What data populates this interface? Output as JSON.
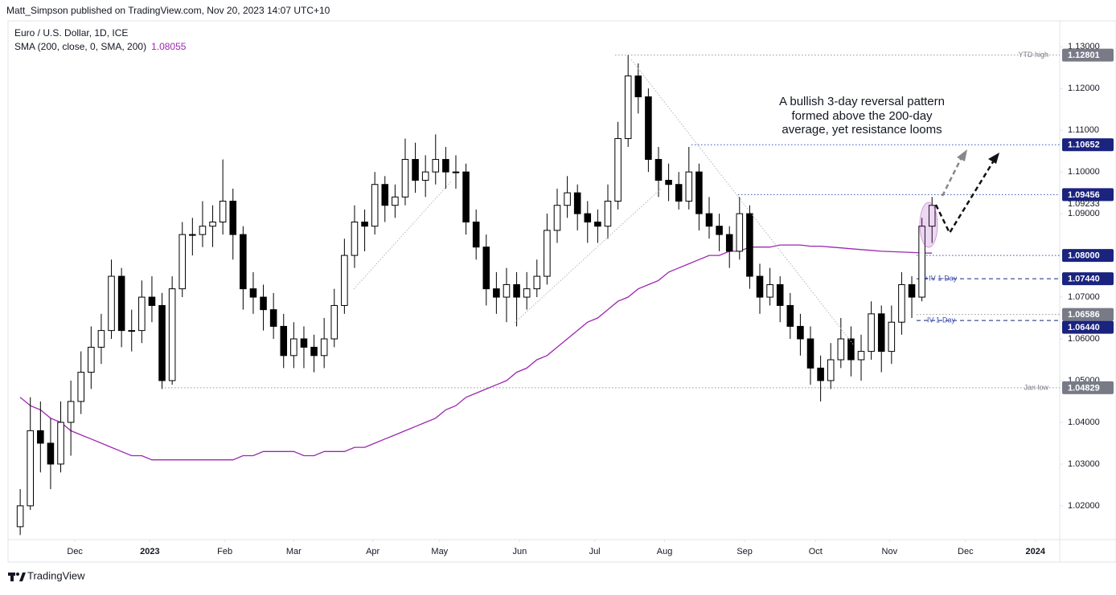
{
  "header": "Matt_Simpson published on TradingView.com, Nov 20, 2023 14:07 UTC+10",
  "footer": "TradingView",
  "chart_data": {
    "type": "candlestick",
    "title": "Euro / U.S. Dollar, 1D, ICE",
    "annotation": [
      "A bullish 3-day reversal pattern",
      "formed above the 200-day",
      "average, yet resistance looms"
    ],
    "up_color": "#ffffff",
    "down_color": "#000000",
    "candles": [
      [
        1.015,
        1.024,
        1.013,
        1.02
      ],
      [
        1.02,
        1.046,
        1.019,
        1.038
      ],
      [
        1.038,
        1.045,
        1.028,
        1.035
      ],
      [
        1.035,
        1.041,
        1.024,
        1.03
      ],
      [
        1.03,
        1.045,
        1.028,
        1.04
      ],
      [
        1.04,
        1.05,
        1.032,
        1.045
      ],
      [
        1.045,
        1.057,
        1.042,
        1.052
      ],
      [
        1.052,
        1.063,
        1.048,
        1.058
      ],
      [
        1.058,
        1.066,
        1.054,
        1.062
      ],
      [
        1.062,
        1.079,
        1.06,
        1.075
      ],
      [
        1.075,
        1.077,
        1.058,
        1.062
      ],
      [
        1.062,
        1.067,
        1.057,
        1.062
      ],
      [
        1.062,
        1.074,
        1.059,
        1.07
      ],
      [
        1.07,
        1.075,
        1.064,
        1.068
      ],
      [
        1.068,
        1.071,
        1.048,
        1.05
      ],
      [
        1.05,
        1.075,
        1.049,
        1.072
      ],
      [
        1.072,
        1.088,
        1.07,
        1.085
      ],
      [
        1.085,
        1.089,
        1.08,
        1.085
      ],
      [
        1.085,
        1.093,
        1.082,
        1.087
      ],
      [
        1.087,
        1.092,
        1.082,
        1.088
      ],
      [
        1.088,
        1.103,
        1.085,
        1.093
      ],
      [
        1.093,
        1.096,
        1.079,
        1.085
      ],
      [
        1.085,
        1.087,
        1.067,
        1.072
      ],
      [
        1.072,
        1.076,
        1.066,
        1.07
      ],
      [
        1.07,
        1.073,
        1.062,
        1.067
      ],
      [
        1.067,
        1.071,
        1.06,
        1.063
      ],
      [
        1.063,
        1.066,
        1.053,
        1.056
      ],
      [
        1.056,
        1.064,
        1.053,
        1.06
      ],
      [
        1.06,
        1.063,
        1.053,
        1.058
      ],
      [
        1.058,
        1.061,
        1.052,
        1.056
      ],
      [
        1.056,
        1.065,
        1.053,
        1.06
      ],
      [
        1.06,
        1.072,
        1.058,
        1.068
      ],
      [
        1.068,
        1.084,
        1.066,
        1.08
      ],
      [
        1.08,
        1.092,
        1.077,
        1.088
      ],
      [
        1.088,
        1.091,
        1.081,
        1.087
      ],
      [
        1.087,
        1.1,
        1.085,
        1.097
      ],
      [
        1.097,
        1.099,
        1.088,
        1.092
      ],
      [
        1.092,
        1.097,
        1.089,
        1.094
      ],
      [
        1.094,
        1.108,
        1.092,
        1.103
      ],
      [
        1.103,
        1.107,
        1.095,
        1.098
      ],
      [
        1.098,
        1.104,
        1.094,
        1.1
      ],
      [
        1.1,
        1.109,
        1.097,
        1.103
      ],
      [
        1.103,
        1.106,
        1.096,
        1.1
      ],
      [
        1.1,
        1.104,
        1.096,
        1.1
      ],
      [
        1.1,
        1.102,
        1.085,
        1.088
      ],
      [
        1.088,
        1.091,
        1.079,
        1.082
      ],
      [
        1.082,
        1.085,
        1.068,
        1.072
      ],
      [
        1.072,
        1.076,
        1.066,
        1.07
      ],
      [
        1.07,
        1.077,
        1.064,
        1.073
      ],
      [
        1.073,
        1.076,
        1.063,
        1.07
      ],
      [
        1.07,
        1.076,
        1.067,
        1.072
      ],
      [
        1.072,
        1.079,
        1.07,
        1.075
      ],
      [
        1.075,
        1.09,
        1.073,
        1.086
      ],
      [
        1.086,
        1.096,
        1.083,
        1.092
      ],
      [
        1.092,
        1.099,
        1.089,
        1.095
      ],
      [
        1.095,
        1.097,
        1.086,
        1.09
      ],
      [
        1.09,
        1.093,
        1.083,
        1.088
      ],
      [
        1.088,
        1.091,
        1.083,
        1.087
      ],
      [
        1.087,
        1.097,
        1.084,
        1.093
      ],
      [
        1.093,
        1.112,
        1.091,
        1.108
      ],
      [
        1.108,
        1.128,
        1.106,
        1.123
      ],
      [
        1.123,
        1.126,
        1.114,
        1.118
      ],
      [
        1.118,
        1.12,
        1.1,
        1.103
      ],
      [
        1.103,
        1.106,
        1.094,
        1.098
      ],
      [
        1.098,
        1.102,
        1.093,
        1.097
      ],
      [
        1.097,
        1.1,
        1.091,
        1.093
      ],
      [
        1.093,
        1.106,
        1.091,
        1.1
      ],
      [
        1.1,
        1.102,
        1.086,
        1.09
      ],
      [
        1.09,
        1.094,
        1.084,
        1.087
      ],
      [
        1.087,
        1.09,
        1.081,
        1.085
      ],
      [
        1.085,
        1.087,
        1.077,
        1.081
      ],
      [
        1.081,
        1.094,
        1.079,
        1.09
      ],
      [
        1.09,
        1.092,
        1.072,
        1.075
      ],
      [
        1.075,
        1.078,
        1.066,
        1.07
      ],
      [
        1.07,
        1.077,
        1.068,
        1.073
      ],
      [
        1.073,
        1.075,
        1.064,
        1.068
      ],
      [
        1.068,
        1.071,
        1.06,
        1.063
      ],
      [
        1.063,
        1.066,
        1.056,
        1.06
      ],
      [
        1.06,
        1.063,
        1.049,
        1.053
      ],
      [
        1.053,
        1.056,
        1.045,
        1.05
      ],
      [
        1.05,
        1.059,
        1.048,
        1.055
      ],
      [
        1.055,
        1.065,
        1.053,
        1.06
      ],
      [
        1.06,
        1.063,
        1.051,
        1.055
      ],
      [
        1.055,
        1.061,
        1.05,
        1.057
      ],
      [
        1.057,
        1.069,
        1.055,
        1.066
      ],
      [
        1.066,
        1.068,
        1.052,
        1.057
      ],
      [
        1.057,
        1.068,
        1.054,
        1.064
      ],
      [
        1.064,
        1.076,
        1.061,
        1.073
      ],
      [
        1.073,
        1.075,
        1.065,
        1.07
      ],
      [
        1.07,
        1.089,
        1.069,
        1.087
      ],
      [
        1.087,
        1.094,
        1.083,
        1.092
      ]
    ],
    "series": [
      {
        "name": "SMA (200, close, 0, SMA, 200)",
        "color": "#9c27b0",
        "values": [
          1.046,
          1.044,
          1.043,
          1.041,
          1.04,
          1.038,
          1.037,
          1.036,
          1.035,
          1.034,
          1.033,
          1.032,
          1.032,
          1.031,
          1.031,
          1.031,
          1.031,
          1.031,
          1.031,
          1.031,
          1.031,
          1.031,
          1.032,
          1.032,
          1.033,
          1.033,
          1.033,
          1.033,
          1.032,
          1.032,
          1.033,
          1.033,
          1.033,
          1.034,
          1.034,
          1.035,
          1.036,
          1.037,
          1.038,
          1.039,
          1.04,
          1.041,
          1.043,
          1.044,
          1.046,
          1.047,
          1.048,
          1.049,
          1.05,
          1.052,
          1.053,
          1.055,
          1.056,
          1.058,
          1.06,
          1.062,
          1.064,
          1.065,
          1.067,
          1.069,
          1.07,
          1.072,
          1.073,
          1.074,
          1.076,
          1.077,
          1.078,
          1.079,
          1.08,
          1.08,
          1.081,
          1.081,
          1.082,
          1.082,
          1.082,
          1.0825,
          1.0825,
          1.0825,
          1.0822,
          1.0822,
          1.082,
          1.0818,
          1.0816,
          1.0814,
          1.0812,
          1.081,
          1.0809,
          1.0808,
          1.0807,
          1.0806,
          1.08055
        ]
      }
    ],
    "last_price": 1.09233,
    "levels": [
      {
        "value": 1.12801,
        "text": "YTD high",
        "color": "#787b86",
        "line": "dotted"
      },
      {
        "value": 1.10652,
        "color": "#1a237e",
        "line": "dotted"
      },
      {
        "value": 1.09456,
        "color": "#1a237e",
        "line": "dotted"
      },
      {
        "value": 1.08,
        "value_label": "1.08000",
        "color": "#1a237e",
        "line": "dotted"
      },
      {
        "value": 1.0744,
        "value_label": "1.07440",
        "text": "+IV 1-Day",
        "color": "#1a237e",
        "line": "dashed"
      },
      {
        "value": 1.06586,
        "color": "#787b86",
        "line": "dotted"
      },
      {
        "value": 1.0644,
        "value_label": "1.06440",
        "text": "-IV 1-Day",
        "color": "#1a237e",
        "line": "dashed"
      },
      {
        "value": 1.04829,
        "text": "Jan low",
        "color": "#787b86",
        "line": "dotted"
      }
    ],
    "xlim": [
      -1.2,
      102.6
    ],
    "xticks": [
      {
        "value": 5.4,
        "label": "Dec"
      },
      {
        "value": 12.8,
        "label": "2023"
      },
      {
        "value": 20.2,
        "label": "Feb"
      },
      {
        "value": 27.0,
        "label": "Mar"
      },
      {
        "value": 34.8,
        "label": "Apr"
      },
      {
        "value": 41.4,
        "label": "May"
      },
      {
        "value": 49.3,
        "label": "Jun"
      },
      {
        "value": 56.7,
        "label": "Jul"
      },
      {
        "value": 63.6,
        "label": "Aug"
      },
      {
        "value": 71.5,
        "label": "Sep"
      },
      {
        "value": 78.5,
        "label": "Oct"
      },
      {
        "value": 85.8,
        "label": "Nov"
      },
      {
        "value": 93.3,
        "label": "Dec"
      },
      {
        "value": 100.2,
        "label": "2024"
      }
    ],
    "ylim": [
      1.0119,
      1.1362
    ],
    "yticks": [
      {
        "value": 1.02,
        "label": "1.02000"
      },
      {
        "value": 1.03,
        "label": "1.03000"
      },
      {
        "value": 1.04,
        "label": "1.04000"
      },
      {
        "value": 1.05,
        "label": "1.05000"
      },
      {
        "value": 1.06,
        "label": "1.06000"
      },
      {
        "value": 1.07,
        "label": "1.07000"
      },
      {
        "value": 1.09,
        "label": "1.09000"
      },
      {
        "value": 1.1,
        "label": "1.10000"
      },
      {
        "value": 1.11,
        "label": "1.11000"
      },
      {
        "value": 1.12,
        "label": "1.12000"
      },
      {
        "value": 1.13,
        "label": "1.13000"
      }
    ]
  }
}
